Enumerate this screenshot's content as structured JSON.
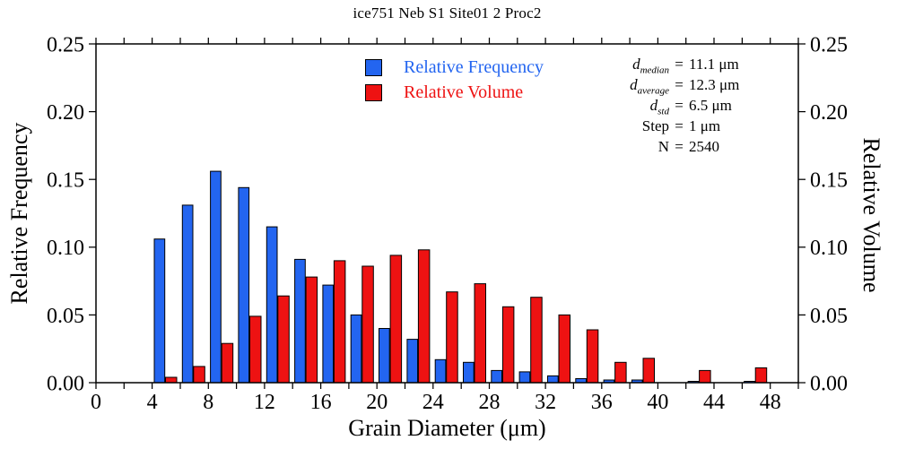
{
  "chart_data": {
    "type": "bar",
    "title": "ice751 Neb S1 Site01 2 Proc2",
    "xlabel": "Grain Diameter (μm)",
    "ylabel_left": "Relative Frequency",
    "ylabel_right": "Relative Volume",
    "xlim": [
      0,
      50
    ],
    "ylim": [
      0,
      0.25
    ],
    "xtick_label_step": 4,
    "xtick_minor_step": 2,
    "ytick_step": 0.05,
    "grid": false,
    "legend_position": "inside-top-center",
    "bin_width_um": 2,
    "bin_starts": [
      4,
      6,
      8,
      10,
      12,
      14,
      16,
      18,
      20,
      22,
      24,
      26,
      28,
      30,
      32,
      34,
      36,
      38,
      40,
      42,
      44,
      46
    ],
    "series": [
      {
        "name": "Relative Frequency",
        "key": "frequency",
        "color": "#2365F0",
        "axis": "left",
        "values": [
          0.106,
          0.131,
          0.156,
          0.144,
          0.115,
          0.091,
          0.072,
          0.05,
          0.04,
          0.032,
          0.017,
          0.015,
          0.009,
          0.008,
          0.005,
          0.003,
          0.002,
          0.002,
          0,
          0.001,
          0,
          0.001
        ]
      },
      {
        "name": "Relative Volume",
        "key": "volume",
        "color": "#EE1212",
        "axis": "right",
        "values": [
          0.004,
          0.012,
          0.029,
          0.049,
          0.064,
          0.078,
          0.09,
          0.086,
          0.094,
          0.098,
          0.067,
          0.073,
          0.056,
          0.063,
          0.05,
          0.039,
          0.015,
          0.018,
          0,
          0.009,
          0,
          0.011
        ]
      }
    ],
    "axis_color": "#000000"
  },
  "stats": {
    "equals": "=",
    "rows": [
      {
        "label": "d",
        "sub": "median",
        "value": "11.1 μm"
      },
      {
        "label": "d",
        "sub": "average",
        "value": "12.3 μm"
      },
      {
        "label": "d",
        "sub": "std",
        "value": "6.5 μm"
      },
      {
        "label": "Step",
        "sub": "",
        "value": "1 μm"
      },
      {
        "label": "N",
        "sub": "",
        "value": "2540"
      }
    ]
  }
}
